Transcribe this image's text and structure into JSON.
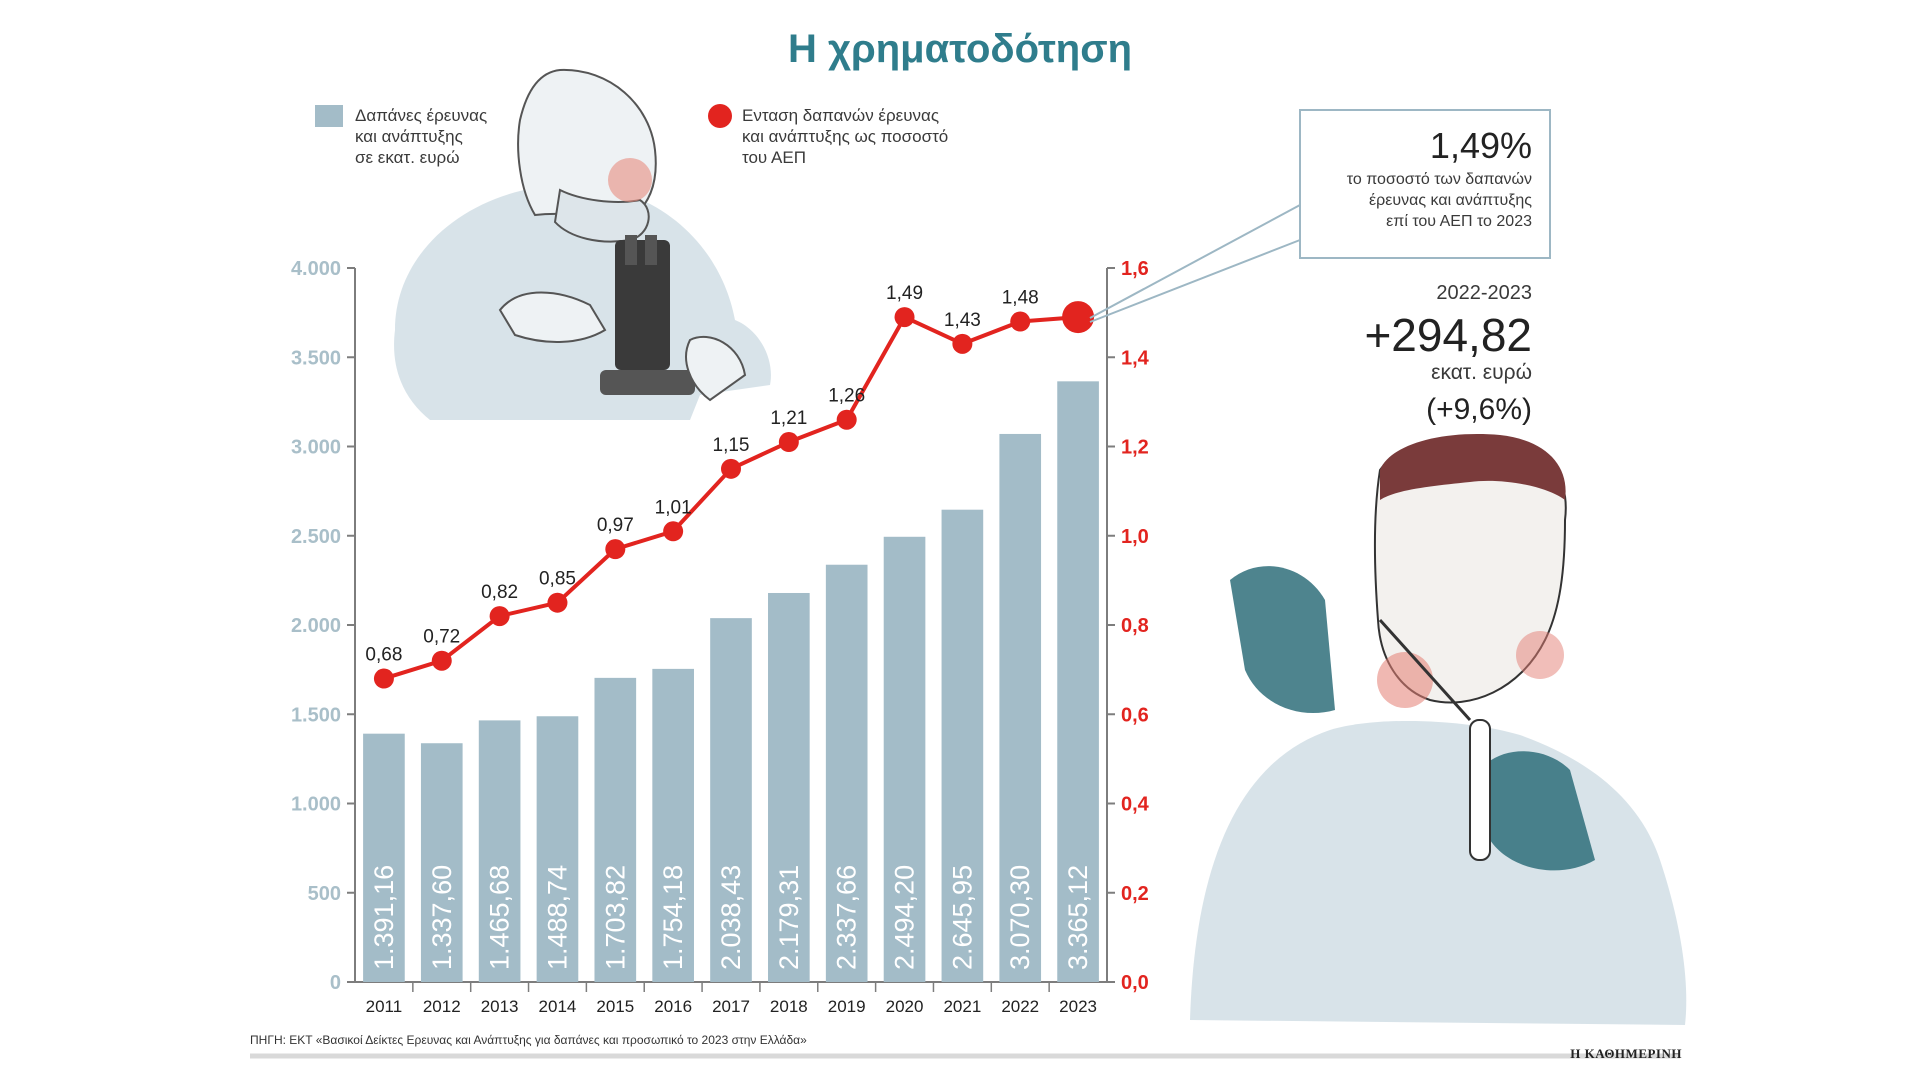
{
  "title": "Η χρηματοδότηση",
  "legend": {
    "bars_lines": [
      "Δαπάνες έρευνας",
      "και ανάπτυξης",
      "σε εκατ. ευρώ"
    ],
    "line_lines": [
      "Ενταση δαπανών έρευνας",
      "και ανάπτυξης ως ποσοστό",
      "του ΑΕΠ"
    ]
  },
  "callout": {
    "value": "1,49%",
    "lines": [
      "το ποσοστό των δαπανών",
      "έρευνας και ανάπτυξης",
      "επί του ΑΕΠ το 2023"
    ]
  },
  "stat": {
    "period": "2022-2023",
    "value": "+294,82",
    "unit": "εκατ. ευρώ",
    "change": "(+9,6%)"
  },
  "source": "ΠΗΓΗ: ΕΚΤ «Βασικοί Δείκτες Ερευνας και Ανάπτυξης για δαπάνες και προσωπικό το 2023 στην Ελλάδα»",
  "brand": "Η ΚΑΘΗΜΕΡΙΝΗ",
  "colors": {
    "bar": "#a3bcc8",
    "line": "#e2241f",
    "title": "#2f7d8c",
    "left_axis": "#a9bfc9",
    "right_axis": "#e2241f"
  },
  "illustrations": [
    "scientist-microscope-icon",
    "scientist-test-tube-icon"
  ],
  "chart_data": {
    "type": "bar+line",
    "categories": [
      "2011",
      "2012",
      "2013",
      "2014",
      "2015",
      "2016",
      "2017",
      "2018",
      "2019",
      "2020",
      "2021",
      "2022",
      "2023"
    ],
    "series": [
      {
        "name": "Δαπάνες έρευνας και ανάπτυξης σε εκατ. ευρώ",
        "type": "bar",
        "axis": "left",
        "values": [
          1391.16,
          1337.6,
          1465.68,
          1488.74,
          1703.82,
          1754.18,
          2038.43,
          2179.31,
          2337.66,
          2494.2,
          2645.95,
          3070.3,
          3365.12
        ],
        "labels": [
          "1.391,16",
          "1.337,60",
          "1.465,68",
          "1.488,74",
          "1.703,82",
          "1.754,18",
          "2.038,43",
          "2.179,31",
          "2.337,66",
          "2.494,20",
          "2.645,95",
          "3.070,30",
          "3.365,12"
        ]
      },
      {
        "name": "Ενταση δαπανών έρευνας και ανάπτυξης ως ποσοστό του ΑΕΠ",
        "type": "line",
        "axis": "right",
        "values": [
          0.68,
          0.72,
          0.82,
          0.85,
          0.97,
          1.01,
          1.15,
          1.21,
          1.26,
          1.49,
          1.43,
          1.48,
          1.49
        ],
        "labels": [
          "0,68",
          "0,72",
          "0,82",
          "0,85",
          "0,97",
          "1,01",
          "1,15",
          "1,21",
          "1,26",
          "1,49",
          "1,43",
          "1,48",
          ""
        ]
      }
    ],
    "left_axis": {
      "ylim": [
        0,
        4000
      ],
      "ticks": [
        0,
        500,
        1000,
        1500,
        2000,
        2500,
        3000,
        3500,
        4000
      ],
      "tick_labels": [
        "0",
        "500",
        "1.000",
        "1.500",
        "2.000",
        "2.500",
        "3.000",
        "3.500",
        "4.000"
      ]
    },
    "right_axis": {
      "ylim": [
        0,
        1.6
      ],
      "ticks": [
        0,
        0.2,
        0.4,
        0.6,
        0.8,
        1.0,
        1.2,
        1.4,
        1.6
      ],
      "tick_labels": [
        "0,0",
        "0,2",
        "0,4",
        "0,6",
        "0,8",
        "1,0",
        "1,2",
        "1,4",
        "1,6"
      ]
    },
    "grid": false
  }
}
